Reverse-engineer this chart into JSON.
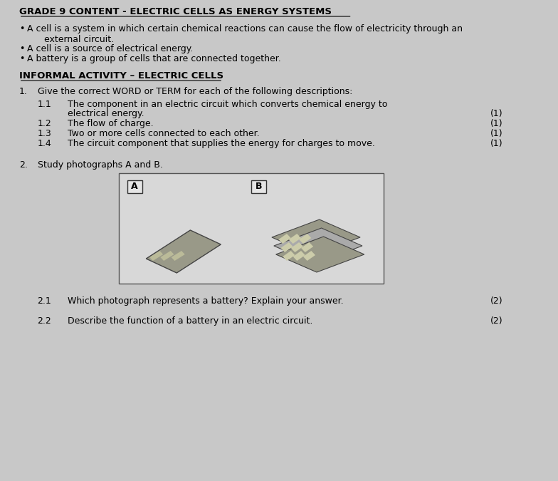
{
  "bg_color": "#c8c8c8",
  "text_color": "#000000",
  "title": "GRADE 9 CONTENT - ELECTRIC CELLS AS ENERGY SYSTEMS",
  "bullet1": "A cell is a system in which certain chemical reactions can cause the flow of electricity through an\n      external circuit.",
  "bullet2": "A cell is a source of electrical energy.",
  "bullet3": "A battery is a group of cells that are connected together.",
  "section2_title": "INFORMAL ACTIVITY – ELECTRIC CELLS",
  "q1_intro": "Give the correct WORD or TERM for each of the following descriptions:",
  "q1_1": "The component in an electric circuit which converts chemical energy to\n           electrical energy.",
  "q1_2": "The flow of charge.",
  "q1_3": "Two or more cells connected to each other.",
  "q1_4": "The circuit component that supplies the energy for charges to move.",
  "q2_intro": "Study photographs A and B.",
  "q2_1": "Which photograph represents a battery? Explain your answer.",
  "q2_2": "Describe the function of a battery in an electric circuit.",
  "mark1": "(1)",
  "mark2": "(2)"
}
